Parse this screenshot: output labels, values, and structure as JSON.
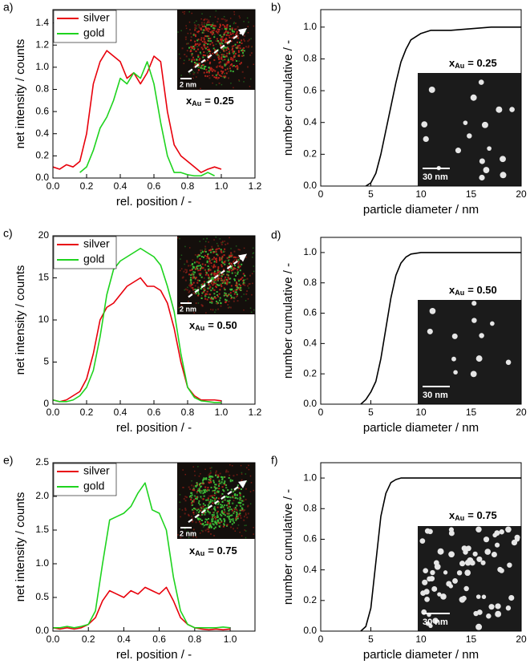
{
  "chart_data": [
    {
      "type": "line",
      "panel_label": "a)",
      "x_label": "rel. position / -",
      "y_label": "net intensity / counts",
      "x": [
        0,
        0.04,
        0.08,
        0.12,
        0.16,
        0.2,
        0.24,
        0.28,
        0.32,
        0.36,
        0.4,
        0.44,
        0.48,
        0.52,
        0.56,
        0.6,
        0.64,
        0.68,
        0.72,
        0.76,
        0.8,
        0.84,
        0.88,
        0.92,
        0.96,
        1.0
      ],
      "series": [
        {
          "name": "silver",
          "color": "#e8000b",
          "values": [
            0.1,
            0.08,
            0.12,
            0.1,
            0.15,
            0.4,
            0.85,
            1.05,
            1.15,
            1.1,
            1.05,
            0.9,
            0.95,
            0.85,
            0.95,
            1.1,
            1.05,
            0.6,
            0.3,
            0.2,
            0.15,
            0.1,
            0.05,
            0.08,
            0.1,
            0.08
          ]
        },
        {
          "name": "gold",
          "color": "#1ed31e",
          "values": [
            null,
            null,
            null,
            null,
            0.05,
            0.1,
            0.25,
            0.45,
            0.55,
            0.7,
            0.9,
            0.85,
            0.95,
            0.9,
            1.05,
            0.85,
            0.5,
            0.2,
            0.05,
            0.05,
            0.03,
            0.02,
            0.02,
            0.05,
            0.02,
            null
          ]
        }
      ],
      "xlim": [
        0,
        1.2
      ],
      "xticks": [
        {
          "value": 0,
          "label": "0.0"
        },
        {
          "value": 0.2,
          "label": "0.2"
        },
        {
          "value": 0.4,
          "label": "0.4"
        },
        {
          "value": 0.6,
          "label": "0.6"
        },
        {
          "value": 0.8,
          "label": "0.8"
        },
        {
          "value": 1.0,
          "label": "1.0"
        },
        {
          "value": 1.2,
          "label": "1.2"
        }
      ],
      "ylim": [
        0,
        1.52
      ],
      "yticks": [
        {
          "value": 0,
          "label": "0.0"
        },
        {
          "value": 0.2,
          "label": "0.2"
        },
        {
          "value": 0.4,
          "label": "0.4"
        },
        {
          "value": 0.6,
          "label": "0.6"
        },
        {
          "value": 0.8,
          "label": "0.8"
        },
        {
          "value": 1.0,
          "label": "1.0"
        },
        {
          "value": 1.2,
          "label": "1.2"
        },
        {
          "value": 1.4,
          "label": "1.4"
        }
      ],
      "legend": "top-left",
      "inset_label": {
        "symbol": "x",
        "subscript": "Au",
        "value_text": "= 0.25",
        "scale_bar": "2 nm"
      }
    },
    {
      "type": "line",
      "panel_label": "b)",
      "x_label": "particle diameter / nm",
      "y_label": "number cumulative / -",
      "x": [
        4.5,
        5,
        5.5,
        6,
        6.5,
        7,
        7.5,
        8,
        8.5,
        9,
        10,
        11,
        13,
        15,
        17,
        20
      ],
      "values": [
        0,
        0.02,
        0.08,
        0.2,
        0.35,
        0.5,
        0.65,
        0.78,
        0.86,
        0.92,
        0.96,
        0.98,
        0.98,
        0.99,
        1.0,
        1.0
      ],
      "color": "#000000",
      "xlim": [
        0,
        20
      ],
      "xticks": [
        0,
        5,
        10,
        15,
        20
      ],
      "ylim": [
        0,
        1.11
      ],
      "yticks": [
        {
          "value": 0,
          "label": "0.0"
        },
        {
          "value": 0.2,
          "label": "0.2"
        },
        {
          "value": 0.4,
          "label": "0.4"
        },
        {
          "value": 0.6,
          "label": "0.6"
        },
        {
          "value": 0.8,
          "label": "0.8"
        },
        {
          "value": 1.0,
          "label": "1.0"
        }
      ],
      "inset_label": {
        "symbol": "x",
        "subscript": "Au",
        "value_text": "= 0.25",
        "scale_bar": "30 nm"
      }
    },
    {
      "type": "line",
      "panel_label": "c)",
      "x_label": "rel. position / -",
      "y_label": "net intensity / counts",
      "x": [
        0,
        0.04,
        0.08,
        0.12,
        0.16,
        0.2,
        0.24,
        0.28,
        0.32,
        0.36,
        0.4,
        0.44,
        0.48,
        0.52,
        0.56,
        0.6,
        0.64,
        0.68,
        0.72,
        0.76,
        0.8,
        0.84,
        0.88,
        0.92,
        0.96,
        1.0
      ],
      "series": [
        {
          "name": "silver",
          "color": "#e8000b",
          "values": [
            0.5,
            0.3,
            0.5,
            1,
            1.5,
            3,
            6,
            10,
            11.5,
            12,
            13,
            14,
            14.5,
            15,
            14,
            14,
            13.5,
            12,
            9,
            5,
            2,
            1,
            0.5,
            0.5,
            0.5,
            0.4
          ]
        },
        {
          "name": "gold",
          "color": "#1ed31e",
          "values": [
            0.5,
            0.3,
            0.3,
            0.5,
            1,
            2,
            4,
            8,
            13,
            16,
            17,
            17.5,
            18,
            18.5,
            18,
            17.5,
            16.5,
            14,
            11,
            6,
            2,
            0.8,
            0.4,
            0.3,
            0.2,
            0.2
          ]
        }
      ],
      "xlim": [
        0,
        1.2
      ],
      "xticks": [
        {
          "value": 0,
          "label": "0.0"
        },
        {
          "value": 0.2,
          "label": "0.2"
        },
        {
          "value": 0.4,
          "label": "0.4"
        },
        {
          "value": 0.6,
          "label": "0.6"
        },
        {
          "value": 0.8,
          "label": "0.8"
        },
        {
          "value": 1.0,
          "label": "1.0"
        },
        {
          "value": 1.2,
          "label": "1.2"
        }
      ],
      "ylim": [
        0,
        20
      ],
      "yticks": [
        0,
        5,
        10,
        15,
        20
      ],
      "legend": "top-left",
      "inset_label": {
        "symbol": "x",
        "subscript": "Au",
        "value_text": "= 0.50",
        "scale_bar": "2 nm"
      }
    },
    {
      "type": "line",
      "panel_label": "d)",
      "x_label": "particle diameter / nm",
      "y_label": "number cumulative / -",
      "x": [
        4,
        4.5,
        5,
        5.5,
        6,
        6.5,
        7,
        7.5,
        8,
        8.5,
        9,
        10,
        20
      ],
      "values": [
        0,
        0.03,
        0.08,
        0.15,
        0.3,
        0.5,
        0.7,
        0.85,
        0.93,
        0.97,
        0.99,
        1.0,
        1.0
      ],
      "color": "#000000",
      "xlim": [
        0,
        20
      ],
      "xticks": [
        0,
        5,
        10,
        15,
        20
      ],
      "ylim": [
        0,
        1.1
      ],
      "yticks": [
        {
          "value": 0,
          "label": "0.0"
        },
        {
          "value": 0.2,
          "label": "0.2"
        },
        {
          "value": 0.4,
          "label": "0.4"
        },
        {
          "value": 0.6,
          "label": "0.6"
        },
        {
          "value": 0.8,
          "label": "0.8"
        },
        {
          "value": 1.0,
          "label": "1.0"
        }
      ],
      "inset_label": {
        "symbol": "x",
        "subscript": "Au",
        "value_text": "= 0.50",
        "scale_bar": "30 nm"
      }
    },
    {
      "type": "line",
      "panel_label": "e)",
      "x_label": "rel. position / -",
      "y_label": "net intensity / counts",
      "x": [
        0,
        0.04,
        0.08,
        0.12,
        0.16,
        0.2,
        0.24,
        0.28,
        0.32,
        0.36,
        0.4,
        0.44,
        0.48,
        0.52,
        0.56,
        0.6,
        0.64,
        0.68,
        0.72,
        0.76,
        0.8,
        0.84,
        0.88,
        0.92,
        0.96,
        1.0
      ],
      "series": [
        {
          "name": "silver",
          "color": "#e8000b",
          "values": [
            0.05,
            0.03,
            0.05,
            0.03,
            0.05,
            0.1,
            0.2,
            0.45,
            0.6,
            0.55,
            0.5,
            0.6,
            0.55,
            0.65,
            0.6,
            0.55,
            0.65,
            0.45,
            0.2,
            0.1,
            0.05,
            0.03,
            0.02,
            0.03,
            0.02,
            0.03
          ]
        },
        {
          "name": "gold",
          "color": "#1ed31e",
          "values": [
            0.05,
            0.05,
            0.07,
            0.05,
            0.07,
            0.1,
            0.3,
            1.0,
            1.65,
            1.7,
            1.75,
            1.85,
            2.05,
            2.2,
            1.8,
            1.75,
            1.5,
            0.8,
            0.3,
            0.1,
            0.05,
            0.05,
            0.05,
            0.05,
            0.06,
            0.05
          ]
        }
      ],
      "xlim": [
        0,
        1.14
      ],
      "xticks": [
        {
          "value": 0,
          "label": "0.0"
        },
        {
          "value": 0.2,
          "label": "0.2"
        },
        {
          "value": 0.4,
          "label": "0.4"
        },
        {
          "value": 0.6,
          "label": "0.6"
        },
        {
          "value": 0.8,
          "label": "0.8"
        },
        {
          "value": 1.0,
          "label": "1.0"
        }
      ],
      "ylim": [
        0,
        2.5
      ],
      "yticks": [
        {
          "value": 0,
          "label": "0.0"
        },
        {
          "value": 0.5,
          "label": "0.5"
        },
        {
          "value": 1.0,
          "label": "1.0"
        },
        {
          "value": 1.5,
          "label": "1.5"
        },
        {
          "value": 2.0,
          "label": "2.0"
        },
        {
          "value": 2.5,
          "label": "2.5"
        }
      ],
      "legend": "top-left",
      "inset_label": {
        "symbol": "x",
        "subscript": "Au",
        "value_text": "= 0.75",
        "scale_bar": "2 nm"
      }
    },
    {
      "type": "line",
      "panel_label": "f)",
      "x_label": "particle diameter / nm",
      "y_label": "number cumulative / -",
      "x": [
        4,
        4.5,
        5,
        5.5,
        6,
        6.5,
        7,
        7.5,
        8,
        20
      ],
      "values": [
        0,
        0.03,
        0.15,
        0.45,
        0.75,
        0.9,
        0.97,
        0.99,
        1.0,
        1.0
      ],
      "color": "#000000",
      "xlim": [
        0,
        20
      ],
      "xticks": [
        0,
        5,
        10,
        15,
        20
      ],
      "ylim": [
        0,
        1.1
      ],
      "yticks": [
        {
          "value": 0,
          "label": "0.0"
        },
        {
          "value": 0.2,
          "label": "0.2"
        },
        {
          "value": 0.4,
          "label": "0.4"
        },
        {
          "value": 0.6,
          "label": "0.6"
        },
        {
          "value": 0.8,
          "label": "0.8"
        },
        {
          "value": 1.0,
          "label": "1.0"
        }
      ],
      "inset_label": {
        "symbol": "x",
        "subscript": "Au",
        "value_text": "= 0.75",
        "scale_bar": "30 nm"
      }
    }
  ]
}
